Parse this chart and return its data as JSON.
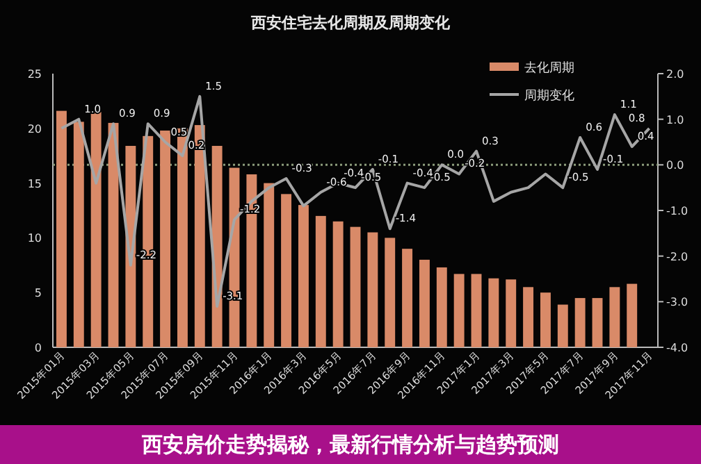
{
  "chart_data": {
    "type": "bar",
    "title": "西安住宅去化周期及周期变化",
    "categories": [
      "2015年01月",
      null,
      "2015年03月",
      null,
      "2015年05月",
      null,
      "2015年07月",
      null,
      "2015年09月",
      null,
      "2015年11月",
      null,
      "2016年1月",
      null,
      "2016年3月",
      null,
      "2016年5月",
      null,
      "2016年7月",
      null,
      "2016年9月",
      null,
      "2016年11月",
      null,
      "2017年1月",
      null,
      "2017年3月",
      null,
      "2017年5月",
      null,
      "2017年7月",
      null,
      "2017年9月",
      null,
      "2017年11月"
    ],
    "series": [
      {
        "name": "去化周期",
        "color": "#d98a68",
        "values": [
          21.6,
          20.6,
          21.5,
          20.5,
          18.4,
          19.3,
          19.8,
          20.0,
          20.3,
          18.4,
          16.4,
          15.8,
          15.0,
          14.0,
          13.0,
          12.0,
          11.5,
          11.0,
          10.5,
          10.0,
          9.0,
          8.0,
          7.3,
          6.7,
          6.7,
          6.3,
          6.2,
          5.5,
          5.0,
          3.9,
          4.5,
          4.5,
          5.5,
          5.8,
          null
        ]
      },
      {
        "name": "周期变化",
        "type": "line",
        "axis": "y2",
        "color": "#a6a6a6",
        "values": [
          0.8,
          1.0,
          -0.4,
          0.9,
          -2.2,
          0.9,
          0.5,
          0.2,
          1.5,
          -3.1,
          -1.2,
          -0.8,
          -0.5,
          -0.3,
          -0.9,
          -0.6,
          -0.4,
          -0.5,
          -0.1,
          -1.4,
          -0.4,
          -0.5,
          0.0,
          -0.2,
          0.3,
          -0.8,
          -0.6,
          -0.5,
          -0.2,
          -0.5,
          0.6,
          -0.1,
          1.1,
          0.4,
          0.8
        ],
        "value_labels": [
          null,
          "1.0",
          null,
          "0.9",
          "-2.2",
          "0.9",
          "0.5",
          "0.2",
          "1.5",
          "-3.1",
          "-1.2",
          null,
          null,
          "-0.3",
          null,
          "-0.6",
          "-0.4",
          "-0.5",
          "-0.1",
          "-1.4",
          "-0.4",
          "-0.5",
          "0.0",
          "-0.2",
          "0.3",
          null,
          null,
          null,
          null,
          "-0.5",
          "0.6",
          "-0.1",
          "1.1",
          "0.4",
          "0.8"
        ]
      }
    ],
    "ylim": [
      0,
      25
    ],
    "yticks": [
      0,
      5,
      10,
      15,
      20,
      25
    ],
    "y2lim": [
      -4,
      2
    ],
    "y2ticks": [
      {
        "value": 2,
        "label": "2.0"
      },
      {
        "value": 1,
        "label": "1.0"
      },
      {
        "value": 0,
        "label": "0.0"
      },
      {
        "value": -1,
        "label": "-1.0"
      },
      {
        "value": -2,
        "label": "-2.0"
      },
      {
        "value": -3,
        "label": "-3.0"
      },
      {
        "value": -4,
        "label": "-4.0"
      }
    ],
    "ref_lines": [
      {
        "axis": "y2",
        "value": 0,
        "line_style": "dotted",
        "color": "#8a9a7a"
      }
    ],
    "legend": "top right",
    "annotations": [
      "西安房价走势揭秘，最新行情分析与趋势预测"
    ]
  }
}
